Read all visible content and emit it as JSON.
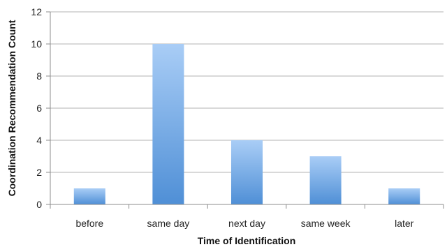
{
  "chart_data": {
    "type": "bar",
    "title": "",
    "xlabel": "Time of Identification",
    "ylabel": "Coordination Recommendation Count",
    "categories": [
      "before",
      "same day",
      "next day",
      "same week",
      "later"
    ],
    "values": [
      1,
      10,
      4,
      3,
      1
    ],
    "ylim": [
      0,
      12
    ],
    "yticks": [
      0,
      2,
      4,
      6,
      8,
      10,
      12
    ],
    "grid": true,
    "legend": "none",
    "colors": {
      "bar_top": "#a9cdf6",
      "bar_bottom": "#4f8fd6",
      "grid": "#b3b3b3",
      "axis": "#8c8c8c"
    }
  }
}
